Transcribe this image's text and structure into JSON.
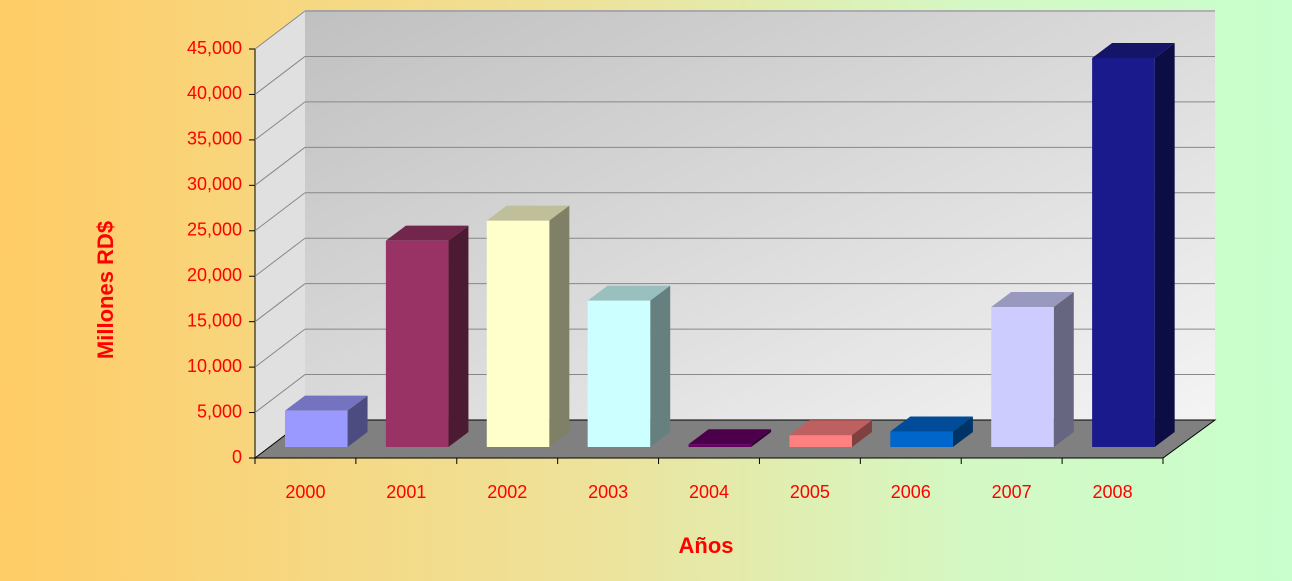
{
  "chart_data": {
    "type": "bar3d",
    "x_label": "Años",
    "y_label": "Millones RD$",
    "categories": [
      "2000",
      "2001",
      "2002",
      "2003",
      "2004",
      "2005",
      "2006",
      "2007",
      "2008"
    ],
    "values": [
      4000,
      22700,
      24900,
      16100,
      300,
      1300,
      1700,
      15400,
      42800
    ],
    "colors": [
      "#9999ff",
      "#993366",
      "#ffffcc",
      "#ccffff",
      "#660066",
      "#ff8080",
      "#0066cc",
      "#ccccff",
      "#1a1a8c"
    ],
    "ylim": [
      0,
      45000
    ],
    "yticks": [
      0,
      {
        "value": 5000,
        "label": "5,000"
      },
      {
        "value": 10000,
        "label": "10,000"
      },
      {
        "value": 15000,
        "label": "15,000"
      },
      {
        "value": 20000,
        "label": "20,000"
      },
      {
        "value": 25000,
        "label": "25,000"
      },
      {
        "value": 30000,
        "label": "30,000"
      },
      {
        "value": 35000,
        "label": "35,000"
      },
      {
        "value": 40000,
        "label": "40,000"
      },
      {
        "value": 45000,
        "label": "45,000"
      }
    ],
    "grid": true
  }
}
